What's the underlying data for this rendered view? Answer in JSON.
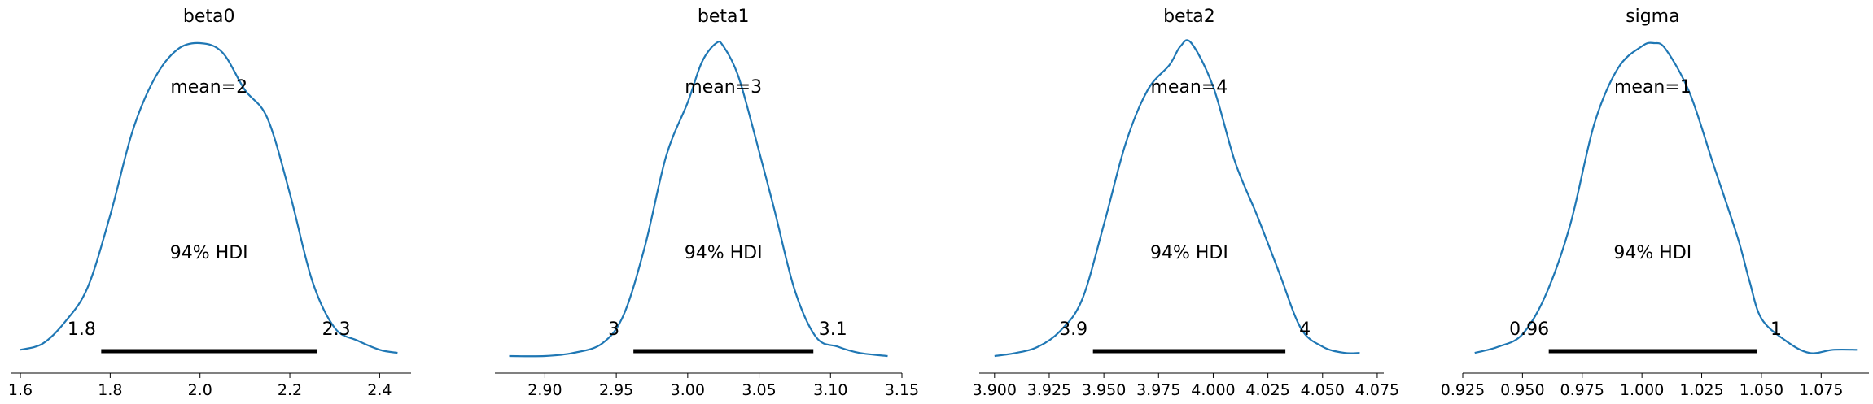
{
  "chart_data": [
    {
      "type": "line",
      "title": "beta0",
      "mean_label": "mean=2",
      "hdi_label": "94% HDI",
      "hdi": [
        1.78,
        2.26
      ],
      "hdi_low_label": "1.8",
      "hdi_high_label": "2.3",
      "xlim": [
        1.58,
        2.47
      ],
      "xticks": [
        1.6,
        1.8,
        2.0,
        2.2,
        2.4
      ],
      "xtick_labels": [
        "1.6",
        "1.8",
        "2.0",
        "2.2",
        "2.4"
      ],
      "density_x": [
        1.6,
        1.65,
        1.7,
        1.75,
        1.8,
        1.85,
        1.9,
        1.95,
        2.0,
        2.05,
        2.1,
        2.15,
        2.2,
        2.25,
        2.3,
        2.35,
        2.4,
        2.44
      ],
      "density_y": [
        0.02,
        0.04,
        0.11,
        0.22,
        0.45,
        0.72,
        0.89,
        0.98,
        1.0,
        0.97,
        0.85,
        0.76,
        0.52,
        0.24,
        0.09,
        0.05,
        0.02,
        0.01
      ]
    },
    {
      "type": "line",
      "title": "beta1",
      "mean_label": "mean=3",
      "hdi_label": "94% HDI",
      "hdi": [
        2.962,
        3.088
      ],
      "hdi_low_label": "3",
      "hdi_high_label": "3.1",
      "xlim": [
        2.865,
        3.15
      ],
      "xticks": [
        2.9,
        2.95,
        3.0,
        3.05,
        3.1,
        3.15
      ],
      "xtick_labels": [
        "2.90",
        "2.95",
        "3.00",
        "3.05",
        "3.10",
        "3.15"
      ],
      "density_x": [
        2.875,
        2.9,
        2.92,
        2.94,
        2.955,
        2.97,
        2.985,
        3.0,
        3.01,
        3.02,
        3.025,
        3.035,
        3.045,
        3.06,
        3.075,
        3.09,
        3.105,
        3.12,
        3.14
      ],
      "density_y": [
        0.0,
        0.0,
        0.01,
        0.04,
        0.13,
        0.35,
        0.64,
        0.81,
        0.94,
        1.0,
        0.99,
        0.9,
        0.74,
        0.48,
        0.21,
        0.06,
        0.03,
        0.01,
        0.0
      ]
    },
    {
      "type": "line",
      "title": "beta2",
      "mean_label": "mean=4",
      "hdi_label": "94% HDI",
      "hdi": [
        3.945,
        4.033
      ],
      "hdi_low_label": "3.9",
      "hdi_high_label": "4",
      "xlim": [
        3.893,
        4.078
      ],
      "xticks": [
        3.9,
        3.925,
        3.95,
        3.975,
        4.0,
        4.025,
        4.05,
        4.075
      ],
      "xtick_labels": [
        "3.900",
        "3.925",
        "3.950",
        "3.975",
        "4.000",
        "4.025",
        "4.050",
        "4.075"
      ],
      "density_x": [
        3.9,
        3.91,
        3.92,
        3.93,
        3.94,
        3.95,
        3.96,
        3.97,
        3.98,
        3.985,
        3.99,
        4.0,
        4.01,
        4.02,
        4.03,
        4.04,
        4.05,
        4.06,
        4.067
      ],
      "density_y": [
        0.0,
        0.01,
        0.03,
        0.08,
        0.18,
        0.42,
        0.68,
        0.85,
        0.93,
        0.99,
        1.0,
        0.86,
        0.62,
        0.45,
        0.27,
        0.09,
        0.03,
        0.01,
        0.01
      ]
    },
    {
      "type": "line",
      "title": "sigma",
      "mean_label": "mean=1",
      "hdi_label": "94% HDI",
      "hdi": [
        0.961,
        1.048
      ],
      "hdi_low_label": "0.96",
      "hdi_high_label": "1",
      "xlim": [
        0.925,
        1.095
      ],
      "xticks": [
        0.925,
        0.95,
        0.975,
        1.0,
        1.025,
        1.05,
        1.075
      ],
      "xtick_labels": [
        "0.925",
        "0.950",
        "0.975",
        "1.000",
        "1.025",
        "1.050",
        "1.075"
      ],
      "density_x": [
        0.93,
        0.94,
        0.95,
        0.96,
        0.97,
        0.98,
        0.99,
        1.0,
        1.005,
        1.01,
        1.02,
        1.03,
        1.04,
        1.045,
        1.05,
        1.06,
        1.07,
        1.08,
        1.09
      ],
      "density_y": [
        0.01,
        0.03,
        0.07,
        0.2,
        0.42,
        0.74,
        0.92,
        0.99,
        1.0,
        0.98,
        0.84,
        0.61,
        0.38,
        0.24,
        0.12,
        0.05,
        0.01,
        0.02,
        0.02
      ]
    }
  ],
  "colors": {
    "density": "#1f77b4",
    "hdi_bar": "#000000",
    "axis": "#000000"
  }
}
